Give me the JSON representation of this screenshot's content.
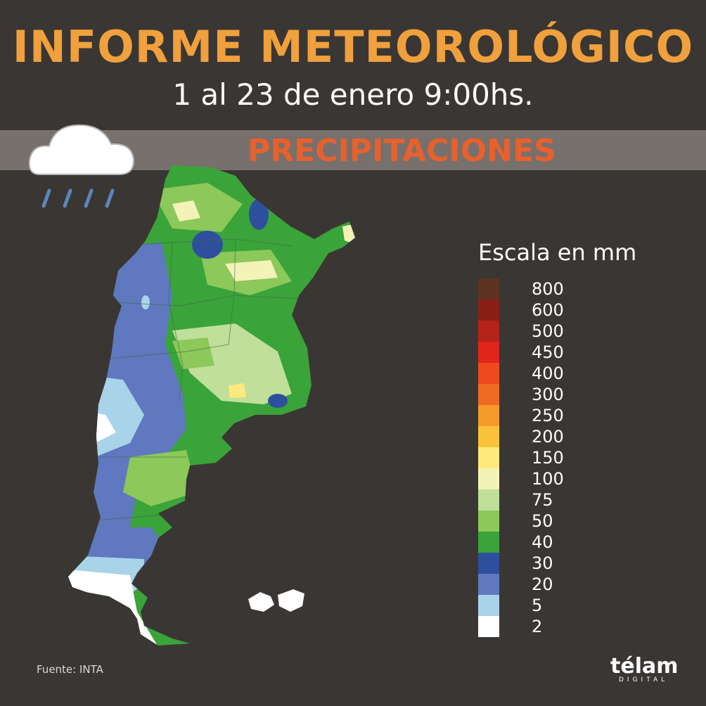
{
  "header": {
    "title": "INFORME METEOROLÓGICO",
    "subtitle": "1 al 23 de enero 9:00hs.",
    "section": "PRECIPITACIONES"
  },
  "legend": {
    "title": "Escala en mm",
    "items": [
      {
        "label": "800",
        "color": "#5e3322"
      },
      {
        "label": "600",
        "color": "#8a1f16"
      },
      {
        "label": "500",
        "color": "#b4221a"
      },
      {
        "label": "450",
        "color": "#e0251b"
      },
      {
        "label": "400",
        "color": "#ee4a1f"
      },
      {
        "label": "300",
        "color": "#ef6b24"
      },
      {
        "label": "250",
        "color": "#f59a28"
      },
      {
        "label": "200",
        "color": "#f9c23a"
      },
      {
        "label": "150",
        "color": "#fde97d"
      },
      {
        "label": "100",
        "color": "#f3f3b8"
      },
      {
        "label": "75",
        "color": "#bfdf9a"
      },
      {
        "label": "50",
        "color": "#8cc85a"
      },
      {
        "label": "40",
        "color": "#3aa33a"
      },
      {
        "label": "30",
        "color": "#2e4f9e"
      },
      {
        "label": "20",
        "color": "#5f78c0"
      },
      {
        "label": "5",
        "color": "#a9d3e8"
      },
      {
        "label": "2",
        "color": "#ffffff"
      }
    ]
  },
  "footer": {
    "source": "Fuente: INTA",
    "logo": "télam",
    "logo_sub": "DIGITAL"
  }
}
